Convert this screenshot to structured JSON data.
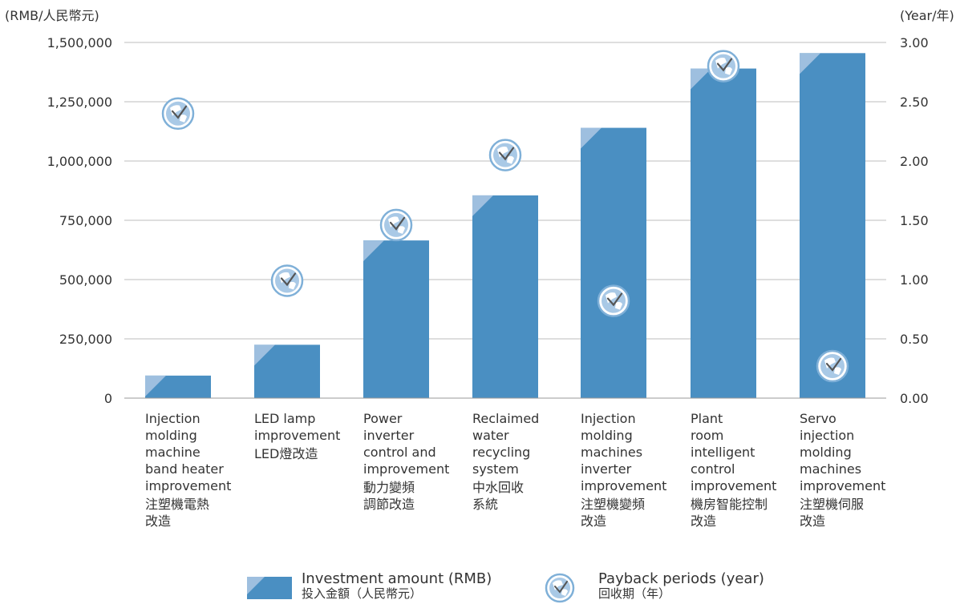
{
  "chart_data": {
    "type": "bar",
    "left_axis_unit": "(RMB/人民幣元)",
    "right_axis_unit": "(Year/年)",
    "left_ticks": [
      "0",
      "250,000",
      "500,000",
      "750,000",
      "1,000,000",
      "1,250,000",
      "1,500,000"
    ],
    "right_ticks": [
      "0.00",
      "0.50",
      "1.00",
      "1.50",
      "2.00",
      "2.50",
      "3.00"
    ],
    "ylim": [
      0,
      1500000
    ],
    "y2lim": [
      0,
      3
    ],
    "grid": true,
    "legend_position": "bottom",
    "categories": [
      {
        "en": "Injection\nmolding\nmachine\nband heater\nimprovement",
        "zh": "注塑機電熱\n改造"
      },
      {
        "en": "LED lamp\nimprovement",
        "zh": "LED燈改造"
      },
      {
        "en": "Power\ninverter\ncontrol and\nimprovement",
        "zh": "動力變頻\n調節改造"
      },
      {
        "en": "Reclaimed\nwater\nrecycling\nsystem",
        "zh": "中水回收\n系統"
      },
      {
        "en": "Injection\nmolding\nmachines\ninverter\nimprovement",
        "zh": "注塑機變頻\n改造"
      },
      {
        "en": "Plant\nroom\nintelligent\ncontrol\nimprovement",
        "zh": "機房智能控制\n改造"
      },
      {
        "en": "Servo\ninjection\nmolding\nmachines\nimprovement",
        "zh": "注塑機伺服\n改造"
      }
    ],
    "series": [
      {
        "name": "Investment amount (RMB)",
        "name_zh": "投入金額（人民幣元）",
        "axis": "left",
        "kind": "bar",
        "color": "#4a8fc2",
        "values": [
          95000,
          225000,
          665000,
          855000,
          1140000,
          1390000,
          1455000
        ]
      },
      {
        "name": "Payback periods (year)",
        "name_zh": "回收期（年）",
        "axis": "right",
        "kind": "marker",
        "color": "#7fb0d8",
        "values": [
          2.4,
          0.99,
          1.46,
          2.05,
          0.82,
          2.8,
          0.27
        ]
      }
    ]
  }
}
